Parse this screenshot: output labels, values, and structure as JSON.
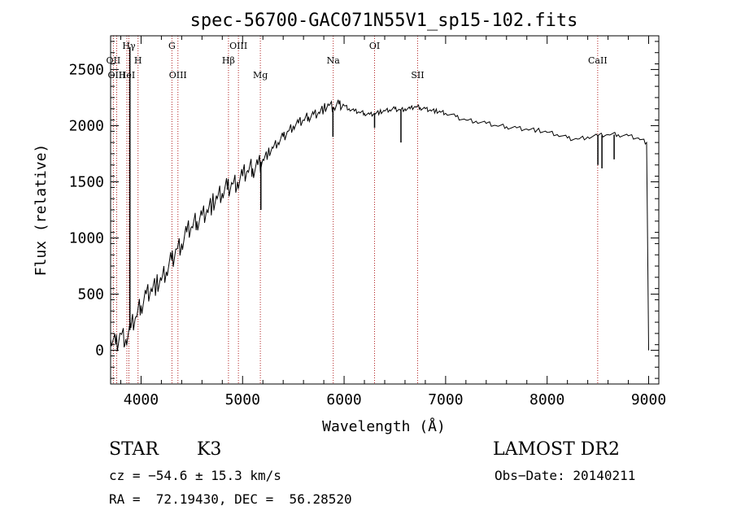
{
  "chart_data": {
    "type": "line",
    "title": "spec-56700-GAC071N55V1_sp15-102.fits",
    "xlabel": "Wavelength (Å)",
    "ylabel": "Flux (relative)",
    "xlim": [
      3700,
      9100
    ],
    "ylim": [
      -300,
      2800
    ],
    "x_ticks": [
      4000,
      5000,
      6000,
      7000,
      8000,
      9000
    ],
    "x_tick_labels": [
      "4000",
      "5000",
      "6000",
      "7000",
      "8000",
      "9000"
    ],
    "y_ticks": [
      0,
      500,
      1000,
      1500,
      2000,
      2500
    ],
    "y_tick_labels": [
      "0",
      "500",
      "1000",
      "1500",
      "2000",
      "2500"
    ],
    "grid": false,
    "series": [
      {
        "color": "#000000",
        "x": [
          3700,
          3750,
          3800,
          3850,
          3900,
          3950,
          4000,
          4050,
          4100,
          4150,
          4200,
          4250,
          4300,
          4350,
          4400,
          4450,
          4500,
          4550,
          4600,
          4650,
          4700,
          4750,
          4800,
          4850,
          4900,
          4950,
          5000,
          5050,
          5100,
          5150,
          5200,
          5250,
          5300,
          5350,
          5400,
          5450,
          5500,
          5550,
          5600,
          5650,
          5700,
          5750,
          5800,
          5850,
          5900,
          5950,
          6000,
          6050,
          6100,
          6150,
          6200,
          6250,
          6300,
          6350,
          6400,
          6450,
          6500,
          6550,
          6600,
          6650,
          6700,
          6750,
          6800,
          6850,
          6900,
          6950,
          7000,
          7100,
          7200,
          7300,
          7400,
          7500,
          7600,
          7700,
          7800,
          7900,
          8000,
          8100,
          8200,
          8300,
          8400,
          8500,
          8600,
          8700,
          8800,
          8900,
          8980,
          9000
        ],
        "y": [
          100,
          50,
          150,
          100,
          200,
          300,
          400,
          500,
          550,
          580,
          620,
          700,
          800,
          900,
          950,
          1050,
          1100,
          1150,
          1200,
          1250,
          1300,
          1350,
          1400,
          1450,
          1480,
          1500,
          1550,
          1600,
          1620,
          1650,
          1700,
          1750,
          1800,
          1850,
          1900,
          1950,
          2000,
          2020,
          2050,
          2080,
          2100,
          2120,
          2150,
          2180,
          2160,
          2190,
          2180,
          2150,
          2130,
          2120,
          2110,
          2100,
          2110,
          2120,
          2130,
          2140,
          2150,
          2140,
          2150,
          2150,
          2170,
          2160,
          2150,
          2140,
          2130,
          2120,
          2110,
          2080,
          2050,
          2040,
          2020,
          2000,
          1990,
          1980,
          1970,
          1960,
          1940,
          1920,
          1890,
          1880,
          1900,
          1910,
          1920,
          1920,
          1910,
          1890,
          1850,
          0
        ]
      }
    ],
    "spikes": [
      {
        "x": 3890,
        "y": 2700
      },
      {
        "x": 4850,
        "y": 1430
      },
      {
        "x": 5180,
        "y": 1250
      },
      {
        "x": 5890,
        "y": 1900
      },
      {
        "x": 6300,
        "y": 1980
      },
      {
        "x": 6560,
        "y": 1850
      },
      {
        "x": 8500,
        "y": 1650
      },
      {
        "x": 8540,
        "y": 1620
      },
      {
        "x": 8660,
        "y": 1700
      }
    ],
    "line_markers_color": "#b22222",
    "line_markers": [
      {
        "label": "OII",
        "x": 3727,
        "row": 2
      },
      {
        "label": "Hγ",
        "x": 3880,
        "row": 1
      },
      {
        "label": "OIII",
        "x": 3760,
        "row": 3
      },
      {
        "label": "HeI",
        "x": 3860,
        "row": 3
      },
      {
        "label": "H",
        "x": 3970,
        "row": 2
      },
      {
        "label": "G",
        "x": 4304,
        "row": 1
      },
      {
        "label": "OIII",
        "x": 4363,
        "row": 3
      },
      {
        "label": "Hβ",
        "x": 4861,
        "row": 2
      },
      {
        "label": "OIII",
        "x": 4959,
        "row": 1
      },
      {
        "label": "Mg",
        "x": 5175,
        "row": 3
      },
      {
        "label": "Na",
        "x": 5893,
        "row": 2
      },
      {
        "label": "OI",
        "x": 6300,
        "row": 1
      },
      {
        "label": "SII",
        "x": 6724,
        "row": 3
      },
      {
        "label": "CaII",
        "x": 8498,
        "row": 2
      }
    ]
  },
  "info": {
    "class_label": "STAR",
    "subclass": "K3",
    "survey": "LAMOST DR2",
    "cz": "cz = −54.6 ± 15.3 km/s",
    "obs_date": "Obs−Date: 20140211",
    "coords": "RA =  72.19430, DEC =  56.28520"
  }
}
